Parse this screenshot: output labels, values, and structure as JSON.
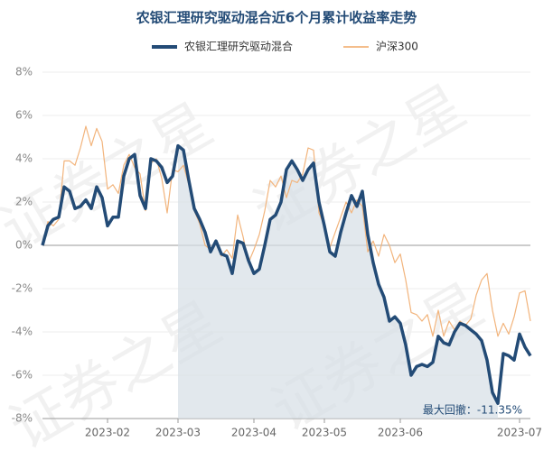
{
  "chart_data": {
    "type": "line",
    "title": "农银汇理研究驱动混合近6个月累计收益率走势",
    "watermark": "证券之星",
    "annotation": "最大回撤：-11.35%",
    "categories": [
      null,
      null,
      null,
      null,
      null,
      null,
      null,
      null,
      null,
      null,
      null,
      null,
      "2023-02",
      null,
      null,
      null,
      null,
      null,
      null,
      null,
      null,
      null,
      null,
      null,
      null,
      "2023-03",
      null,
      null,
      null,
      null,
      null,
      null,
      null,
      null,
      null,
      null,
      null,
      null,
      null,
      "2023-04",
      null,
      null,
      null,
      null,
      null,
      null,
      null,
      null,
      null,
      null,
      null,
      null,
      "2023-05",
      null,
      null,
      null,
      null,
      null,
      null,
      null,
      null,
      null,
      null,
      null,
      null,
      null,
      "2023-06",
      null,
      null,
      null,
      null,
      null,
      null,
      null,
      null,
      null,
      null,
      null,
      null,
      null,
      null,
      null,
      null,
      null,
      null,
      null,
      null,
      null,
      "2023-07",
      null,
      null
    ],
    "series": [
      {
        "name": "农银汇理研究驱动混合",
        "color": "#234b76",
        "width": 3.5,
        "values": [
          0,
          0.9,
          1.2,
          1.3,
          2.7,
          2.5,
          1.7,
          1.8,
          2.1,
          1.7,
          2.7,
          2.2,
          0.9,
          1.3,
          1.3,
          3.2,
          4.0,
          4.2,
          2.3,
          1.7,
          4.0,
          3.9,
          3.6,
          2.9,
          3.2,
          4.6,
          4.4,
          3.0,
          1.7,
          1.2,
          0.6,
          -0.3,
          0.2,
          -0.4,
          -0.5,
          -1.3,
          0.2,
          0.1,
          -0.7,
          -1.3,
          -1.1,
          0.0,
          1.2,
          1.4,
          2.0,
          3.5,
          3.9,
          3.5,
          3.0,
          3.5,
          3.8,
          2.0,
          0.9,
          -0.3,
          -0.5,
          0.6,
          1.5,
          2.3,
          1.8,
          2.5,
          0.5,
          -0.8,
          -1.8,
          -2.4,
          -3.5,
          -3.3,
          -3.6,
          -4.6,
          -6.0,
          -5.6,
          -5.5,
          -5.6,
          -5.4,
          -4.2,
          -4.5,
          -4.6,
          -4.0,
          -3.6,
          -3.7,
          -3.9,
          -4.1,
          -4.4,
          -5.3,
          -6.8,
          -7.3,
          -5.0,
          -5.1,
          -5.3,
          -4.1,
          -4.7,
          -5.1
        ]
      },
      {
        "name": "沪深300",
        "color": "#f2b47c",
        "width": 1.2,
        "values": [
          0,
          1.1,
          0.9,
          1.2,
          3.9,
          3.9,
          3.7,
          4.5,
          5.5,
          4.6,
          5.4,
          4.8,
          2.6,
          2.8,
          2.4,
          3.7,
          4.2,
          3.6,
          3.3,
          1.6,
          3.8,
          4.0,
          3.1,
          1.5,
          3.5,
          3.4,
          3.7,
          2.8,
          1.6,
          1.0,
          0.0,
          -0.2,
          0.2,
          -0.5,
          -0.2,
          -0.6,
          1.4,
          0.4,
          -0.8,
          -0.2,
          0.5,
          1.6,
          3.0,
          2.7,
          3.2,
          2.2,
          3.0,
          2.9,
          3.3,
          4.5,
          4.4,
          1.5,
          0.9,
          -0.1,
          0.6,
          1.3,
          2.0,
          1.5,
          2.1,
          1.8,
          -0.3,
          0.2,
          -0.5,
          0.5,
          0.0,
          -0.8,
          -0.4,
          -1.6,
          -3.1,
          -3.2,
          -3.5,
          -3.2,
          -4.2,
          -3.0,
          -4.2,
          -3.5,
          -3.9,
          -3.5,
          -3.7,
          -3.4,
          -2.3,
          -1.6,
          -1.3,
          -3.0,
          -4.2,
          -3.6,
          -4.1,
          -3.3,
          -2.2,
          -2.1,
          -3.5
        ]
      }
    ],
    "ylim": [
      -8,
      8
    ],
    "yticks": [
      {
        "value": -8,
        "label": "-8%"
      },
      {
        "value": -6,
        "label": "-6%"
      },
      {
        "value": -4,
        "label": "-4%"
      },
      {
        "value": -2,
        "label": "-2%"
      },
      {
        "value": 0,
        "label": "0%"
      },
      {
        "value": 2,
        "label": "2%"
      },
      {
        "value": 4,
        "label": "4%"
      },
      {
        "value": 6,
        "label": "6%"
      },
      {
        "value": 8,
        "label": "8%"
      }
    ],
    "grid": true,
    "legend": "top"
  }
}
